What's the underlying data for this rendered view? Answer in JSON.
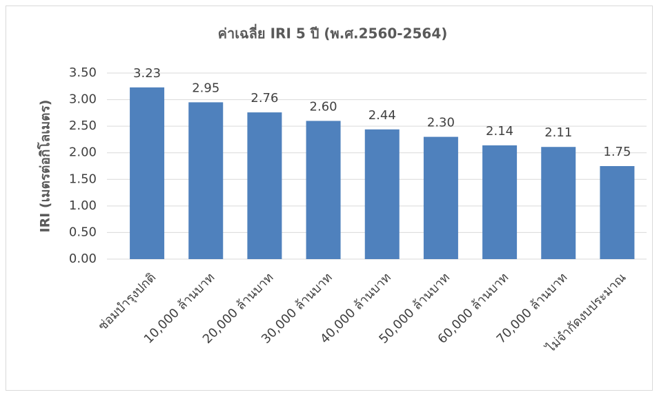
{
  "chart_data": {
    "type": "bar",
    "title": "ค่าเฉลี่ย IRI  5 ปี  (พ.ศ.2560-2564)",
    "y_label": "IRI (เมตรต่อกิโลเมตร)",
    "categories": [
      "ซ่อมบำรุงปกติ",
      "10,000 ล้านบาท",
      "20,000 ล้านบาท",
      "30,000 ล้านบาท",
      "40,000 ล้านบาท",
      "50,000 ล้านบาท",
      "60,000 ล้านบาท",
      "70,000 ล้านบาท",
      "ไม่จำกัดงบประมาณ"
    ],
    "values": [
      3.23,
      2.95,
      2.76,
      2.6,
      2.44,
      2.3,
      2.14,
      2.11,
      1.75
    ],
    "value_labels": [
      "3.23",
      "2.95",
      "2.76",
      "2.60",
      "2.44",
      "2.30",
      "2.14",
      "2.11",
      "1.75"
    ],
    "color": "#4f81bd",
    "ylim": [
      0,
      3.5
    ],
    "yticks": [
      {
        "value": 0,
        "label": "0.00"
      },
      {
        "value": 0.5,
        "label": "0.50"
      },
      {
        "value": 1,
        "label": "1.00"
      },
      {
        "value": 1.5,
        "label": "1.50"
      },
      {
        "value": 2,
        "label": "2.00"
      },
      {
        "value": 2.5,
        "label": "2.50"
      },
      {
        "value": 3,
        "label": "3.00"
      },
      {
        "value": 3.5,
        "label": "3.50"
      }
    ],
    "grid": true
  }
}
